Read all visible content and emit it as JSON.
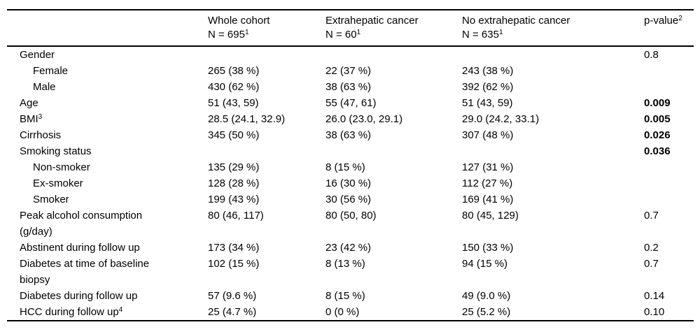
{
  "table": {
    "columns": [
      {
        "title": "Whole cohort",
        "n_label": "N = 695",
        "n_sup": "1"
      },
      {
        "title": "Extrahepatic cancer",
        "n_label": "N = 60",
        "n_sup": "1"
      },
      {
        "title": "No extrahepatic cancer",
        "n_label": "N = 635",
        "n_sup": "1"
      }
    ],
    "p_header": {
      "label": "p-value",
      "sup": "2"
    },
    "rows": [
      {
        "label_lines": [
          "Gender"
        ],
        "sup": "",
        "indent": false,
        "values": [
          "",
          "",
          ""
        ],
        "p": "0.8",
        "p_bold": false
      },
      {
        "label_lines": [
          "Female"
        ],
        "sup": "",
        "indent": true,
        "values": [
          "265 (38 %)",
          "22 (37 %)",
          "243 (38 %)"
        ],
        "p": "",
        "p_bold": false
      },
      {
        "label_lines": [
          "Male"
        ],
        "sup": "",
        "indent": true,
        "values": [
          "430 (62 %)",
          "38 (63 %)",
          "392 (62 %)"
        ],
        "p": "",
        "p_bold": false
      },
      {
        "label_lines": [
          "Age"
        ],
        "sup": "",
        "indent": false,
        "values": [
          "51 (43, 59)",
          "55 (47, 61)",
          "51 (43, 59)"
        ],
        "p": "0.009",
        "p_bold": true
      },
      {
        "label_lines": [
          "BMI"
        ],
        "sup": "3",
        "indent": false,
        "values": [
          "28.5 (24.1, 32.9)",
          "26.0 (23.0, 29.1)",
          "29.0 (24.2, 33.1)"
        ],
        "p": "0.005",
        "p_bold": true
      },
      {
        "label_lines": [
          "Cirrhosis"
        ],
        "sup": "",
        "indent": false,
        "values": [
          "345 (50 %)",
          "38 (63 %)",
          "307 (48 %)"
        ],
        "p": "0.026",
        "p_bold": true
      },
      {
        "label_lines": [
          "Smoking status"
        ],
        "sup": "",
        "indent": false,
        "values": [
          "",
          "",
          ""
        ],
        "p": "0.036",
        "p_bold": true
      },
      {
        "label_lines": [
          "Non-smoker"
        ],
        "sup": "",
        "indent": true,
        "values": [
          "135 (29 %)",
          "8 (15 %)",
          "127 (31 %)"
        ],
        "p": "",
        "p_bold": false
      },
      {
        "label_lines": [
          "Ex-smoker"
        ],
        "sup": "",
        "indent": true,
        "values": [
          "128 (28 %)",
          "16 (30 %)",
          "112 (27 %)"
        ],
        "p": "",
        "p_bold": false
      },
      {
        "label_lines": [
          "Smoker"
        ],
        "sup": "",
        "indent": true,
        "values": [
          "199 (43 %)",
          "30 (56 %)",
          "169 (41 %)"
        ],
        "p": "",
        "p_bold": false
      },
      {
        "label_lines": [
          "Peak alcohol consumption",
          "(g/day)"
        ],
        "sup": "",
        "indent": false,
        "values": [
          "80 (46, 117)",
          "80 (50, 80)",
          "80 (45, 129)"
        ],
        "p": "0.7",
        "p_bold": false
      },
      {
        "label_lines": [
          "Abstinent during follow up"
        ],
        "sup": "",
        "indent": false,
        "values": [
          "173 (34 %)",
          "23 (42 %)",
          "150 (33 %)"
        ],
        "p": "0.2",
        "p_bold": false
      },
      {
        "label_lines": [
          "Diabetes at time of baseline",
          "biopsy"
        ],
        "sup": "",
        "indent": false,
        "values": [
          "102 (15 %)",
          "8 (13 %)",
          "94 (15 %)"
        ],
        "p": "0.7",
        "p_bold": false
      },
      {
        "label_lines": [
          "Diabetes during follow up"
        ],
        "sup": "",
        "indent": false,
        "values": [
          "57 (9.6 %)",
          "8 (15 %)",
          "49 (9.0 %)"
        ],
        "p": "0.14",
        "p_bold": false
      },
      {
        "label_lines": [
          "HCC during follow up"
        ],
        "sup": "4",
        "indent": false,
        "values": [
          "25 (4.7 %)",
          "0 (0 %)",
          "25 (5.2 %)"
        ],
        "p": "0.10",
        "p_bold": false
      }
    ]
  }
}
